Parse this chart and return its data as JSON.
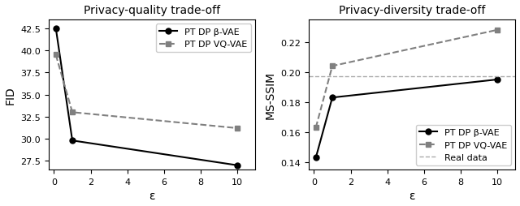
{
  "left_title": "Privacy-quality trade-off",
  "right_title": "Privacy-diversity trade-off",
  "left_xlabel": "ε",
  "right_xlabel": "ε",
  "left_ylabel": "FID",
  "right_ylabel": "MS-SSIM",
  "epsilon": [
    0.1,
    1,
    10
  ],
  "fid_beta_vae": [
    42.5,
    29.8,
    27.0
  ],
  "fid_vq_vae": [
    39.5,
    33.0,
    31.2
  ],
  "msssim_beta_vae": [
    0.143,
    0.183,
    0.195
  ],
  "msssim_vq_vae": [
    0.163,
    0.204,
    0.228
  ],
  "real_data_msssim": 0.197,
  "beta_vae_color": "black",
  "vq_vae_color": "#808080",
  "real_data_color": "#aaaaaa",
  "legend1_labels": [
    "PT DP β-VAE",
    "PT DP VQ-VAE"
  ],
  "legend2_labels": [
    "PT DP β-VAE",
    "PT DP VQ-VAE",
    "Real data"
  ],
  "left_ylim": [
    26.5,
    43.5
  ],
  "right_ylim": [
    0.135,
    0.235
  ],
  "left_yticks": [
    27.5,
    30.0,
    32.5,
    35.0,
    37.5,
    40.0,
    42.5
  ],
  "right_yticks": [
    0.14,
    0.16,
    0.18,
    0.2,
    0.22
  ],
  "xticks": [
    0,
    2,
    4,
    6,
    8,
    10
  ],
  "xlim": [
    -0.3,
    11.0
  ]
}
